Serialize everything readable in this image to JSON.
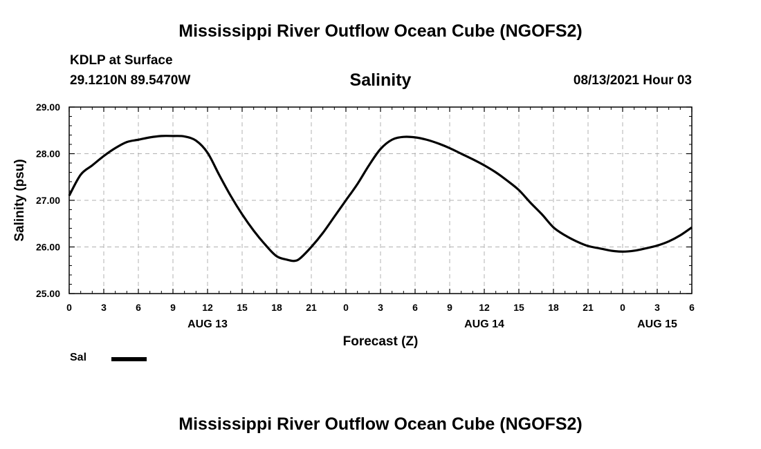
{
  "page": {
    "title_top": "Mississippi River Outflow Ocean Cube (NGOFS2)",
    "title_bottom": "Mississippi River Outflow Ocean Cube (NGOFS2)",
    "station": "KDLP at Surface",
    "coords": "29.1210N  89.5470W",
    "variable": "Salinity",
    "datetime": "08/13/2021 Hour 03"
  },
  "chart_data": {
    "type": "line",
    "title": "Salinity",
    "xlabel": "Forecast (Z)",
    "ylabel": "Salinity (psu)",
    "xlim": [
      0,
      54
    ],
    "ylim": [
      25.0,
      29.0
    ],
    "yticks": [
      25.0,
      26.0,
      27.0,
      28.0,
      29.0
    ],
    "ytick_labels": [
      "25.00",
      "26.00",
      "27.00",
      "28.00",
      "29.00"
    ],
    "xticks": [
      0,
      3,
      6,
      9,
      12,
      15,
      18,
      21,
      24,
      27,
      30,
      33,
      36,
      39,
      42,
      45,
      48,
      51,
      54
    ],
    "xtick_labels": [
      "0",
      "3",
      "6",
      "9",
      "12",
      "15",
      "18",
      "21",
      "0",
      "3",
      "6",
      "9",
      "12",
      "15",
      "18",
      "21",
      "0",
      "3",
      "6"
    ],
    "date_labels": [
      {
        "x": 12,
        "label": "AUG 13"
      },
      {
        "x": 36,
        "label": "AUG 14"
      },
      {
        "x": 51,
        "label": "AUG 15"
      }
    ],
    "grid": true,
    "legend_placement": "bottom-left",
    "series": [
      {
        "name": "Sal",
        "color": "#000000",
        "x": [
          0,
          1,
          2,
          3,
          4,
          5,
          6,
          7,
          8,
          9,
          10,
          11,
          12,
          13,
          14,
          15,
          16,
          17,
          18,
          19,
          19.5,
          20,
          21,
          22,
          23,
          24,
          25,
          26,
          27,
          28,
          29,
          30,
          31,
          32,
          33,
          34,
          35,
          36,
          37,
          38,
          39,
          40,
          41,
          42,
          43,
          44,
          45,
          46,
          47,
          48,
          49,
          50,
          51,
          52,
          53,
          54
        ],
        "values": [
          27.1,
          27.55,
          27.75,
          27.95,
          28.12,
          28.25,
          28.3,
          28.35,
          28.38,
          28.38,
          28.37,
          28.28,
          28.02,
          27.55,
          27.1,
          26.7,
          26.35,
          26.05,
          25.8,
          25.72,
          25.7,
          25.75,
          26.0,
          26.3,
          26.65,
          27.0,
          27.35,
          27.75,
          28.1,
          28.3,
          28.36,
          28.35,
          28.3,
          28.22,
          28.12,
          28.0,
          27.88,
          27.75,
          27.6,
          27.42,
          27.22,
          26.95,
          26.7,
          26.42,
          26.25,
          26.12,
          26.02,
          25.97,
          25.92,
          25.9,
          25.92,
          25.97,
          26.03,
          26.12,
          26.25,
          26.42
        ]
      }
    ]
  }
}
